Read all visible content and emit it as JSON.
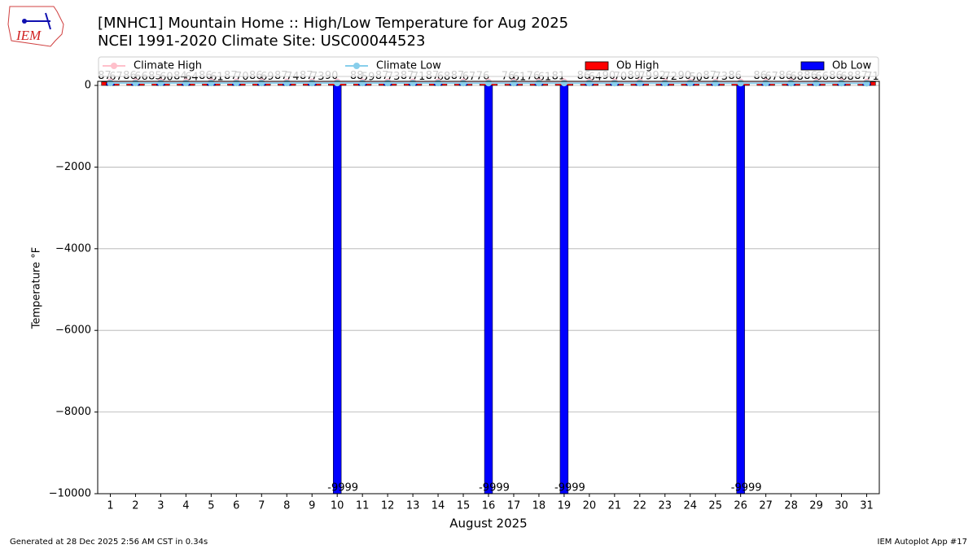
{
  "logo_text": "IEM",
  "footer_left": "Generated at 28 Dec 2025 2:56 AM CST in 0.34s",
  "footer_right": "IEM Autoplot App #17",
  "chart_data": {
    "type": "bar",
    "title": "[MNHC1] Mountain Home :: High/Low Temperature for Aug 2025",
    "subtitle": "NCEI 1991-2020 Climate Site: USC00044523",
    "x_label": "August 2025",
    "y_label": "Temperature °F",
    "categories": [
      "1",
      "2",
      "3",
      "4",
      "5",
      "6",
      "7",
      "8",
      "9",
      "10",
      "11",
      "12",
      "13",
      "14",
      "15",
      "16",
      "17",
      "18",
      "19",
      "20",
      "21",
      "22",
      "23",
      "24",
      "25",
      "26",
      "27",
      "28",
      "29",
      "30",
      "31"
    ],
    "ylim": [
      -10000,
      100
    ],
    "yticks": [
      {
        "value": -10000,
        "label": "−10000"
      },
      {
        "value": -8000,
        "label": "−8000"
      },
      {
        "value": -6000,
        "label": "−6000"
      },
      {
        "value": -4000,
        "label": "−4000"
      },
      {
        "value": -2000,
        "label": "−2000"
      },
      0
    ],
    "grid": true,
    "series": [
      {
        "name": "Climate High",
        "kind": "line",
        "color": "#ffc0cb",
        "values": [
          91,
          91,
          91,
          91,
          91,
          91,
          91,
          91,
          90,
          90,
          90,
          90,
          90,
          90,
          90,
          89,
          89,
          89,
          89,
          89,
          89,
          89,
          88,
          88,
          88,
          88,
          88,
          87,
          87,
          87,
          87
        ]
      },
      {
        "name": "Climate Low",
        "kind": "line",
        "color": "#87ceeb",
        "values": [
          58,
          58,
          58,
          58,
          58,
          58,
          58,
          57,
          57,
          57,
          57,
          57,
          57,
          57,
          56,
          56,
          56,
          56,
          56,
          56,
          55,
          55,
          55,
          55,
          55,
          54,
          54,
          54,
          54,
          54,
          53
        ]
      },
      {
        "name": "Ob High",
        "kind": "bar",
        "color": "#ff0000",
        "values": [
          87,
          86,
          85,
          84,
          86,
          87,
          86,
          87,
          87,
          90,
          88,
          87,
          87,
          87,
          87,
          76,
          76,
          76,
          81,
          86,
          90,
          89,
          92,
          90,
          87,
          86,
          86,
          86,
          86,
          86,
          87
        ]
      },
      {
        "name": "Ob Low",
        "kind": "bar",
        "color": "#0000ff",
        "values": [
          67,
          66,
          60,
          64,
          61,
          70,
          69,
          74,
          73,
          -9999,
          59,
          73,
          71,
          68,
          67,
          -9999,
          61,
          61,
          -9999,
          64,
          70,
          79,
          72,
          50,
          73,
          -9999,
          67,
          68,
          66,
          68,
          71
        ]
      }
    ]
  }
}
